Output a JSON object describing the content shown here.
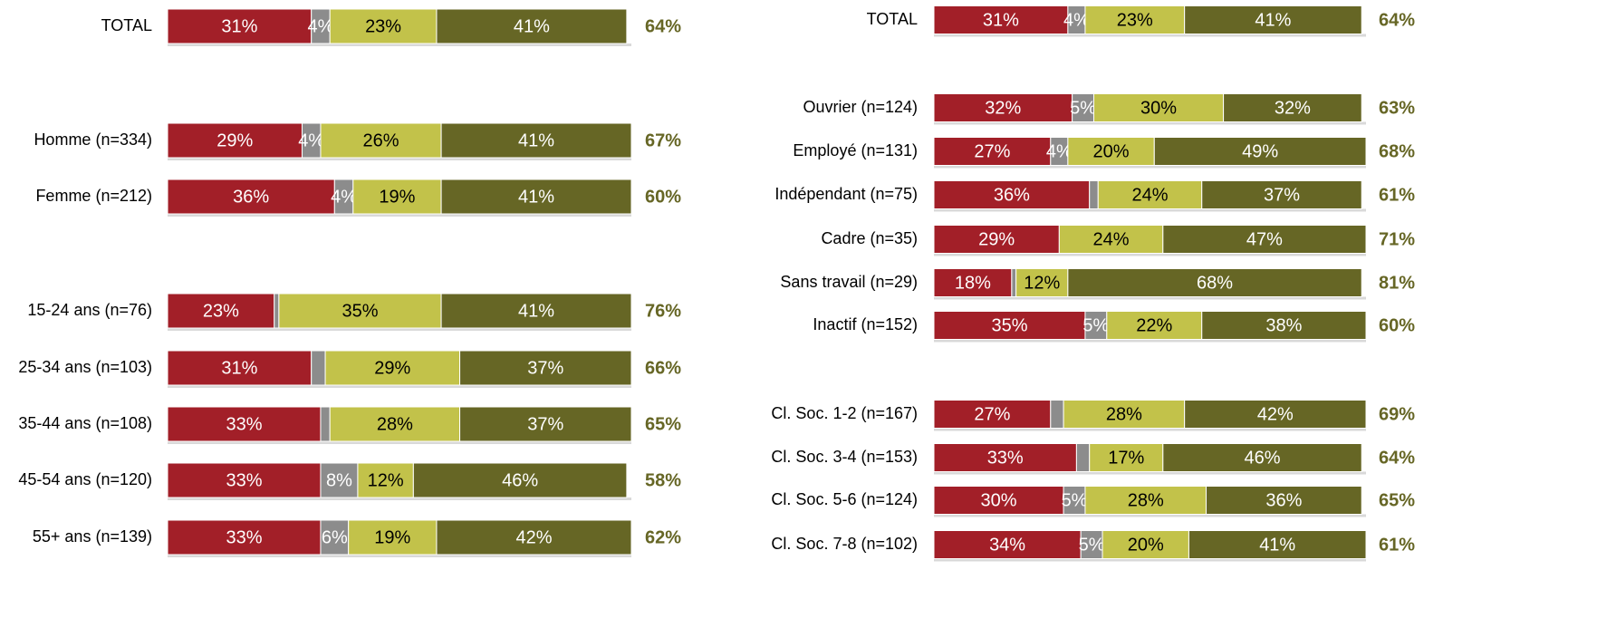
{
  "chart_data": [
    {
      "type": "bar",
      "orientation": "horizontal",
      "xlim": [
        0,
        100
      ],
      "categories": [
        "TOTAL",
        "Homme (n=334)",
        "Femme (n=212)",
        "15-24 ans (n=76)",
        "25-34 ans (n=103)",
        "35-44 ans (n=108)",
        "45-54 ans (n=120)",
        "55+ ans (n=139)"
      ],
      "series": [
        {
          "color": "#a21f28",
          "label_color": "#ffffff",
          "values": [
            31,
            29,
            36,
            23,
            31,
            33,
            33,
            33
          ],
          "value_labels": [
            "31%",
            "29%",
            "36%",
            "23%",
            "31%",
            "33%",
            "33%",
            "33%"
          ]
        },
        {
          "color": "#8c8c8c",
          "label_color": "#ffffff",
          "values": [
            4,
            4,
            4,
            1,
            3,
            2,
            8,
            6
          ],
          "value_labels": [
            "4%",
            "4%",
            "4%",
            null,
            null,
            null,
            "8%",
            "6%"
          ]
        },
        {
          "color": "#c2c24a",
          "label_color": "#000000",
          "values": [
            23,
            26,
            19,
            35,
            29,
            28,
            12,
            19
          ],
          "value_labels": [
            "23%",
            "26%",
            "19%",
            "35%",
            "29%",
            "28%",
            "12%",
            "19%"
          ]
        },
        {
          "color": "#666625",
          "label_color": "#ffffff",
          "values": [
            41,
            41,
            41,
            41,
            37,
            37,
            46,
            42
          ],
          "value_labels": [
            "41%",
            "41%",
            "41%",
            "41%",
            "37%",
            "37%",
            "46%",
            "42%"
          ]
        }
      ],
      "totals": {
        "color": "#666625",
        "values": [
          64,
          67,
          60,
          76,
          66,
          65,
          58,
          62
        ],
        "value_labels": [
          "64%",
          "67%",
          "60%",
          "76%",
          "66%",
          "65%",
          "58%",
          "62%"
        ]
      }
    },
    {
      "type": "bar",
      "orientation": "horizontal",
      "xlim": [
        0,
        100
      ],
      "categories": [
        "TOTAL",
        "Ouvrier (n=124)",
        "Employé (n=131)",
        "Indépendant (n=75)",
        "Cadre (n=35)",
        "Sans travail (n=29)",
        "Inactif (n=152)",
        "Cl. Soc. 1-2 (n=167)",
        "Cl. Soc. 3-4 (n=153)",
        "Cl. Soc. 5-6 (n=124)",
        "Cl. Soc. 7-8 (n=102)"
      ],
      "series": [
        {
          "color": "#a21f28",
          "label_color": "#ffffff",
          "values": [
            31,
            32,
            27,
            36,
            29,
            18,
            35,
            27,
            33,
            30,
            34
          ],
          "value_labels": [
            "31%",
            "32%",
            "27%",
            "36%",
            "29%",
            "18%",
            "35%",
            "27%",
            "33%",
            "30%",
            "34%"
          ]
        },
        {
          "color": "#8c8c8c",
          "label_color": "#ffffff",
          "values": [
            4,
            5,
            4,
            2,
            0,
            1,
            5,
            3,
            3,
            5,
            5
          ],
          "value_labels": [
            "4%",
            "5%",
            "4%",
            null,
            null,
            null,
            "5%",
            null,
            null,
            "5%",
            "5%"
          ]
        },
        {
          "color": "#c2c24a",
          "label_color": "#000000",
          "values": [
            23,
            30,
            20,
            24,
            24,
            12,
            22,
            28,
            17,
            28,
            20
          ],
          "value_labels": [
            "23%",
            "30%",
            "20%",
            "24%",
            "24%",
            "12%",
            "22%",
            "28%",
            "17%",
            "28%",
            "20%"
          ]
        },
        {
          "color": "#666625",
          "label_color": "#ffffff",
          "values": [
            41,
            32,
            49,
            37,
            47,
            68,
            38,
            42,
            46,
            36,
            41
          ],
          "value_labels": [
            "41%",
            "32%",
            "49%",
            "37%",
            "47%",
            "68%",
            "38%",
            "42%",
            "46%",
            "36%",
            "41%"
          ]
        }
      ],
      "totals": {
        "color": "#666625",
        "values": [
          64,
          63,
          68,
          61,
          71,
          81,
          60,
          69,
          64,
          65,
          61
        ],
        "value_labels": [
          "64%",
          "63%",
          "68%",
          "61%",
          "71%",
          "81%",
          "60%",
          "69%",
          "64%",
          "65%",
          "61%"
        ]
      }
    }
  ]
}
